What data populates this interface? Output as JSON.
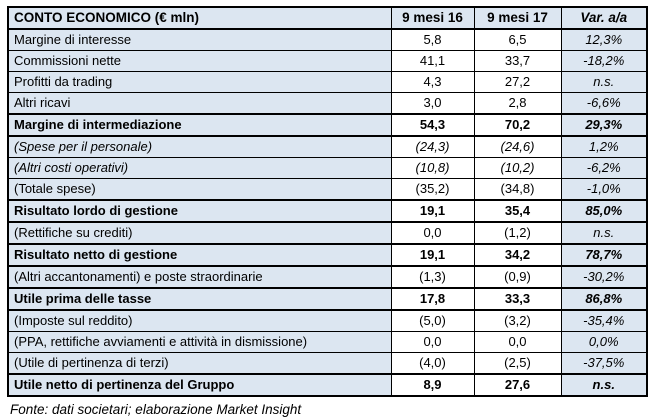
{
  "table": {
    "header": {
      "account": "CONTO ECONOMICO (€ mln)",
      "period1": "9 mesi 16",
      "period2": "9 mesi 17",
      "variance": "Var. a/a"
    },
    "rows": [
      {
        "label": "Margine di interesse",
        "y16": "5,8",
        "y17": "6,5",
        "var": "12,3%",
        "style": "normal"
      },
      {
        "label": "Commissioni nette",
        "y16": "41,1",
        "y17": "33,7",
        "var": "-18,2%",
        "style": "normal"
      },
      {
        "label": "Profitti da trading",
        "y16": "4,3",
        "y17": "27,2",
        "var": "n.s.",
        "style": "normal"
      },
      {
        "label": "Altri ricavi",
        "y16": "3,0",
        "y17": "2,8",
        "var": "-6,6%",
        "style": "normal"
      },
      {
        "label": "Margine di intermediazione",
        "y16": "54,3",
        "y17": "70,2",
        "var": "29,3%",
        "style": "bold"
      },
      {
        "label": "(Spese per il personale)",
        "y16": "(24,3)",
        "y17": "(24,6)",
        "var": "1,2%",
        "style": "italic"
      },
      {
        "label": "(Altri costi operativi)",
        "y16": "(10,8)",
        "y17": "(10,2)",
        "var": "-6,2%",
        "style": "italic"
      },
      {
        "label": "(Totale spese)",
        "y16": "(35,2)",
        "y17": "(34,8)",
        "var": "-1,0%",
        "style": "normal"
      },
      {
        "label": "Risultato lordo di gestione",
        "y16": "19,1",
        "y17": "35,4",
        "var": "85,0%",
        "style": "bold"
      },
      {
        "label": "(Rettifiche su crediti)",
        "y16": "0,0",
        "y17": "(1,2)",
        "var": "n.s.",
        "style": "normal"
      },
      {
        "label": "Risultato netto di gestione",
        "y16": "19,1",
        "y17": "34,2",
        "var": "78,7%",
        "style": "bold"
      },
      {
        "label": "(Altri accantonamenti) e poste straordinarie",
        "y16": "(1,3)",
        "y17": "(0,9)",
        "var": "-30,2%",
        "style": "normal"
      },
      {
        "label": "Utile prima delle tasse",
        "y16": "17,8",
        "y17": "33,3",
        "var": "86,8%",
        "style": "bold"
      },
      {
        "label": "(Imposte sul reddito)",
        "y16": "(5,0)",
        "y17": "(3,2)",
        "var": "-35,4%",
        "style": "normal"
      },
      {
        "label": "(PPA, rettifiche avviamenti e attività in dismissione)",
        "y16": "0,0",
        "y17": "0,0",
        "var": "0,0%",
        "style": "normal"
      },
      {
        "label": "(Utile di pertinenza di terzi)",
        "y16": "(4,0)",
        "y17": "(2,5)",
        "var": "-37,5%",
        "style": "normal"
      },
      {
        "label": "Utile netto di pertinenza del Gruppo",
        "y16": "8,9",
        "y17": "27,6",
        "var": "n.s.",
        "style": "bold"
      }
    ]
  },
  "footer": {
    "source": "Fonte: dati societari; elaborazione Market Insight"
  },
  "colors": {
    "row_bg": "#dce6f1",
    "value_bg": "#ffffff",
    "border": "#000000",
    "text": "#000000"
  }
}
